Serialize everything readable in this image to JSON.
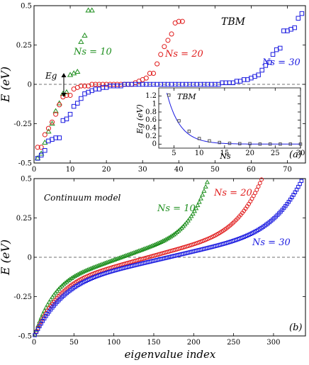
{
  "chart_data": [
    {
      "type": "scatter",
      "panel_label": "(a)",
      "model_label": "TBM",
      "xlabel": "",
      "ylabel": "E (eV)",
      "xlim": [
        0,
        75
      ],
      "ylim": [
        -0.5,
        0.5
      ],
      "x_ticks": [
        "0",
        "10",
        "20",
        "30",
        "40",
        "50",
        "60",
        "70"
      ],
      "y_ticks": [
        "-0.5",
        "-0.25",
        "0",
        "0.25",
        "0.5"
      ],
      "gap_label": "Eg",
      "series": [
        {
          "name": "Ns = 10",
          "color": "#1f8f1f",
          "marker": "triangle",
          "x": [
            1,
            2,
            3,
            4,
            5,
            6,
            7,
            8,
            9,
            10,
            11,
            12,
            13,
            14,
            15,
            16
          ],
          "y": [
            -0.47,
            -0.44,
            -0.37,
            -0.3,
            -0.25,
            -0.17,
            -0.12,
            -0.06,
            -0.05,
            0.06,
            0.07,
            0.08,
            0.27,
            0.31,
            0.47,
            0.47
          ]
        },
        {
          "name": "Ns = 20",
          "color": "#e01b1b",
          "marker": "circle",
          "x": [
            1,
            2,
            3,
            4,
            5,
            6,
            7,
            8,
            9,
            10,
            11,
            12,
            13,
            14,
            15,
            16,
            17,
            18,
            19,
            20,
            21,
            22,
            23,
            24,
            25,
            26,
            27,
            28,
            29,
            30,
            31,
            32,
            33,
            34,
            35,
            36,
            37,
            38,
            39,
            40,
            41
          ],
          "y": [
            -0.4,
            -0.4,
            -0.32,
            -0.28,
            -0.24,
            -0.19,
            -0.13,
            -0.08,
            -0.07,
            -0.07,
            -0.03,
            -0.02,
            -0.01,
            -0.01,
            -0.01,
            0.0,
            0.0,
            0.0,
            0.0,
            0.0,
            0.0,
            0.0,
            0.0,
            0.0,
            0.0,
            0.0,
            0.0,
            0.01,
            0.02,
            0.03,
            0.04,
            0.07,
            0.07,
            0.13,
            0.19,
            0.24,
            0.28,
            0.32,
            0.39,
            0.4,
            0.4
          ]
        },
        {
          "name": "Ns = 30",
          "color": "#1a1ae0",
          "marker": "square",
          "x": [
            1,
            2,
            3,
            4,
            5,
            6,
            7,
            8,
            9,
            10,
            11,
            12,
            13,
            14,
            15,
            16,
            17,
            18,
            19,
            20,
            21,
            22,
            23,
            24,
            25,
            26,
            27,
            28,
            29,
            30,
            31,
            32,
            33,
            34,
            35,
            36,
            37,
            38,
            39,
            40,
            41,
            42,
            43,
            44,
            45,
            46,
            47,
            48,
            49,
            50,
            51,
            52,
            53,
            54,
            55,
            56,
            57,
            58,
            59,
            60,
            61,
            62,
            63,
            64,
            65,
            66,
            67,
            68,
            69,
            70,
            71,
            72,
            73,
            74
          ],
          "y": [
            -0.47,
            -0.45,
            -0.42,
            -0.36,
            -0.35,
            -0.34,
            -0.34,
            -0.23,
            -0.22,
            -0.19,
            -0.14,
            -0.12,
            -0.09,
            -0.06,
            -0.05,
            -0.04,
            -0.03,
            -0.03,
            -0.02,
            -0.02,
            -0.01,
            -0.01,
            -0.01,
            -0.01,
            0.0,
            0.0,
            0.0,
            0.0,
            0.0,
            0.0,
            0.0,
            0.0,
            0.0,
            0.0,
            0.0,
            0.0,
            0.0,
            0.0,
            0.0,
            0.0,
            0.0,
            0.0,
            0.0,
            0.0,
            0.0,
            0.0,
            0.0,
            0.0,
            0.0,
            0.0,
            0.0,
            0.01,
            0.01,
            0.01,
            0.01,
            0.02,
            0.02,
            0.03,
            0.03,
            0.04,
            0.05,
            0.06,
            0.09,
            0.12,
            0.14,
            0.19,
            0.22,
            0.23,
            0.34,
            0.34,
            0.35,
            0.36,
            0.42,
            0.45
          ]
        }
      ],
      "series_labels": [
        "Ns = 10",
        "Ns = 20",
        "Ns = 30"
      ],
      "inset": {
        "type": "line",
        "model_label": "TBM",
        "xlabel": "Ns",
        "ylabel": "Eg (eV)",
        "xlim": [
          2,
          30
        ],
        "ylim": [
          -0.1,
          1.4
        ],
        "x_ticks": [
          "5",
          "10",
          "15",
          "20",
          "25",
          "30"
        ],
        "y_ticks": [
          "0",
          "0.2",
          "0.4",
          "0.6",
          "0.8",
          "1",
          "1.2"
        ],
        "points": {
          "x": [
            4,
            6,
            8,
            10,
            12,
            14,
            16,
            18,
            20,
            22,
            24,
            26,
            28,
            30
          ],
          "y": [
            1.22,
            0.58,
            0.32,
            0.14,
            0.08,
            0.04,
            0.02,
            0.01,
            0.01,
            0.0,
            0.0,
            0.0,
            0.0,
            0.0
          ]
        },
        "fit_color": "#1a1ae0",
        "marker_color": "#555555"
      }
    },
    {
      "type": "scatter",
      "panel_label": "(b)",
      "model_label": "Continuum model",
      "xlabel": "eigenvalue index",
      "ylabel": "E (eV)",
      "xlim": [
        0,
        340
      ],
      "ylim": [
        -0.5,
        0.5
      ],
      "x_ticks": [
        "0",
        "50",
        "100",
        "150",
        "200",
        "250",
        "300"
      ],
      "y_ticks": [
        "-0.5",
        "-0.25",
        "0",
        "0.25",
        "0.5"
      ],
      "series": [
        {
          "name": "Ns = 10",
          "color": "#1f8f1f",
          "marker": "triangle",
          "n": 218,
          "shape": 0.4
        },
        {
          "name": "Ns = 20",
          "color": "#e01b1b",
          "marker": "circle",
          "n": 285,
          "shape": 0.4
        },
        {
          "name": "Ns = 30",
          "color": "#1a1ae0",
          "marker": "square",
          "n": 336,
          "shape": 0.4
        }
      ],
      "series_labels": [
        "Ns = 10",
        "Ns = 20",
        "Ns = 30"
      ]
    }
  ]
}
